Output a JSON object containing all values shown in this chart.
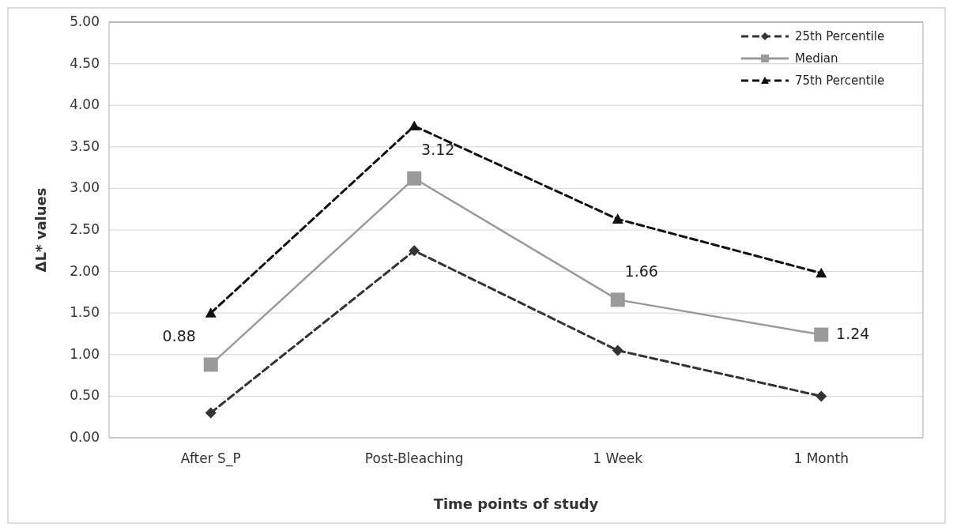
{
  "chart_data": {
    "type": "line",
    "xlabel": "Time points of study",
    "ylabel": "ΔL* values",
    "categories": [
      "After S_P",
      "Post-Bleaching",
      "1 Week",
      "1 Month"
    ],
    "series": [
      {
        "name": "25th Percentile",
        "color": "#333333",
        "values": [
          0.3,
          2.25,
          1.05,
          0.5
        ],
        "marker": "diamond",
        "line_style": "dashed"
      },
      {
        "name": "Median",
        "color": "#9a9a9a",
        "values": [
          0.88,
          3.12,
          1.66,
          1.24
        ],
        "marker": "square",
        "line_style": "solid",
        "value_labels": [
          "0.88",
          "3.12",
          "1.66",
          "1.24"
        ]
      },
      {
        "name": "75th Percentile",
        "color": "#111111",
        "values": [
          1.5,
          3.75,
          2.63,
          1.98
        ],
        "marker": "triangle",
        "line_style": "dashed"
      }
    ],
    "ylim": [
      0,
      5
    ],
    "yticks": [
      {
        "value": 0,
        "label": "0.00"
      },
      {
        "value": 0.5,
        "label": "0.50"
      },
      {
        "value": 1,
        "label": "1.00"
      },
      {
        "value": 1.5,
        "label": "1.50"
      },
      {
        "value": 2,
        "label": "2.00"
      },
      {
        "value": 2.5,
        "label": "2.50"
      },
      {
        "value": 3,
        "label": "3.00"
      },
      {
        "value": 3.5,
        "label": "3.50"
      },
      {
        "value": 4,
        "label": "4.00"
      },
      {
        "value": 4.5,
        "label": "4.50"
      },
      {
        "value": 5,
        "label": "5.00"
      }
    ],
    "grid": "y",
    "legend": "top right"
  }
}
